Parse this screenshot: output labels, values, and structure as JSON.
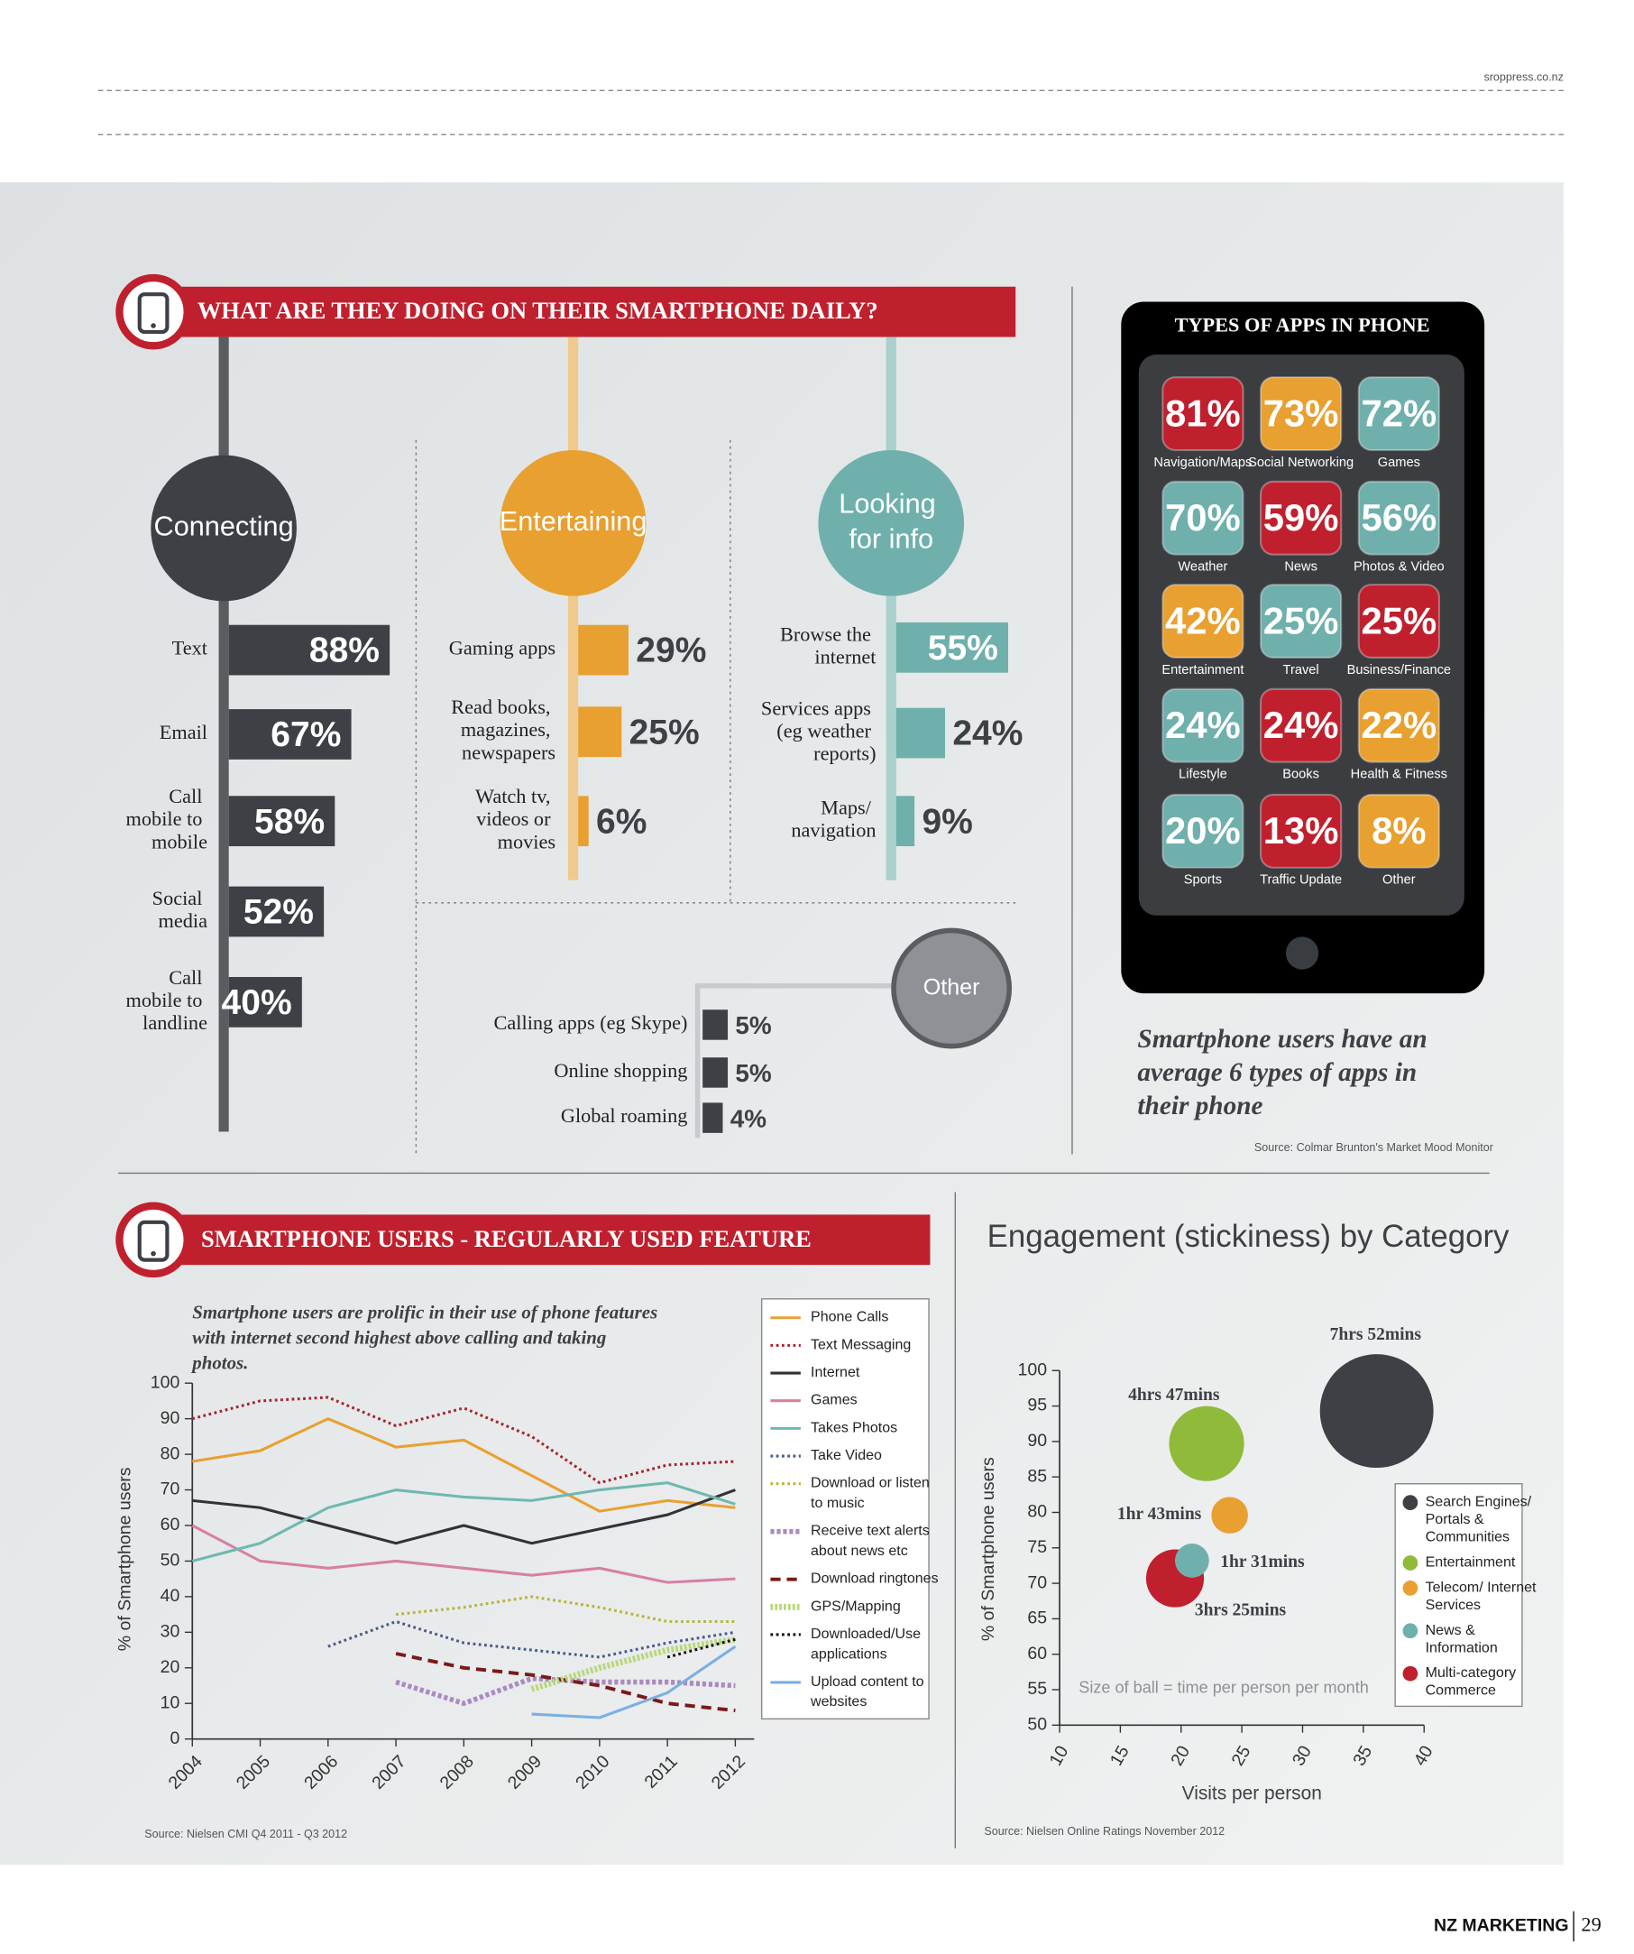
{
  "header": {
    "site": "sroppress.co.nz"
  },
  "daily_title": "WHAT ARE THEY DOING ON THEIR SMARTPHONE DAILY?",
  "apps_note": "Smartphone users have an average 6 types of apps in their phone",
  "apps_source": "Source: Colmar Brunton's Market Mood Monitor",
  "line_source": "Source: Nielsen CMI Q4 2011 - Q3 2012",
  "bubble_source": "Source: Nielsen Online Ratings November 2012",
  "footer": {
    "brand": "NZ MARKETING",
    "page": "29"
  },
  "chart_data": [
    {
      "type": "bar",
      "title": "Connecting",
      "color": "#3d4045",
      "categories": [
        "Text",
        "Email",
        "Call mobile to mobile",
        "Social media",
        "Call mobile to landline"
      ],
      "values": [
        88,
        67,
        58,
        52,
        40
      ],
      "value_labels": [
        "88%",
        "67%",
        "58%",
        "52%",
        "40%"
      ]
    },
    {
      "type": "bar",
      "title": "Entertaining",
      "color": "#e8a030",
      "categories": [
        "Gaming apps",
        "Read books, magazines, newspapers",
        "Watch tv, videos or movies"
      ],
      "values": [
        29,
        25,
        6
      ],
      "value_labels": [
        "29%",
        "25%",
        "6%"
      ]
    },
    {
      "type": "bar",
      "title": "Looking for info",
      "color": "#6fb0ac",
      "categories": [
        "Browse the internet",
        "Services apps (eg weather reports)",
        "Maps/ navigation"
      ],
      "values": [
        55,
        24,
        9
      ],
      "value_labels": [
        "55%",
        "24%",
        "9%"
      ]
    },
    {
      "type": "bar",
      "title": "Other",
      "color": "#3d4045",
      "categories": [
        "Calling apps (eg Skype)",
        "Online shopping",
        "Global roaming"
      ],
      "values": [
        5,
        5,
        4
      ],
      "value_labels": [
        "5%",
        "5%",
        "4%"
      ]
    },
    {
      "type": "tile",
      "title": "TYPES OF APPS IN PHONE",
      "categories": [
        "Navigation/Maps",
        "Social Networking",
        "Games",
        "Weather",
        "News",
        "Photos & Video",
        "Entertainment",
        "Travel",
        "Business/Finance",
        "Lifestyle",
        "Books",
        "Health & Fitness",
        "Sports",
        "Traffic Update",
        "Other"
      ],
      "values": [
        81,
        73,
        72,
        70,
        59,
        56,
        42,
        25,
        25,
        24,
        24,
        22,
        20,
        13,
        8
      ],
      "value_labels": [
        "81%",
        "73%",
        "72%",
        "70%",
        "59%",
        "56%",
        "42%",
        "25%",
        "25%",
        "24%",
        "24%",
        "22%",
        "20%",
        "13%",
        "8%"
      ],
      "colors": [
        "#c0202e",
        "#e8a030",
        "#6fb0ac",
        "#6fb0ac",
        "#c0202e",
        "#6fb0ac",
        "#e8a030",
        "#6fb0ac",
        "#c0202e",
        "#6fb0ac",
        "#c0202e",
        "#e8a030",
        "#6fb0ac",
        "#c0202e",
        "#e8a030"
      ]
    },
    {
      "type": "line",
      "title": "SMARTPHONE USERS - REGULARLY USED FEATURE",
      "subtitle": "Smartphone users are prolific in their use of phone features with internet second highest above calling and taking photos.",
      "y_label": "% of Smartphone users",
      "categories": [
        "2004",
        "2005",
        "2006",
        "2007",
        "2008",
        "2009",
        "2010",
        "2011",
        "2012"
      ],
      "ylim": [
        0,
        100
      ],
      "yticks": [
        0,
        10,
        20,
        30,
        40,
        50,
        60,
        70,
        80,
        90,
        100
      ],
      "legend": "right",
      "series": [
        {
          "name": "Phone Calls",
          "color": "#e8a030",
          "line_style": "solid",
          "values": [
            78,
            81,
            90,
            82,
            84,
            74,
            64,
            67,
            65
          ]
        },
        {
          "name": "Text Messaging",
          "color": "#a3262c",
          "line_style": "dotted",
          "values": [
            90,
            95,
            96,
            88,
            93,
            85,
            72,
            77,
            78
          ]
        },
        {
          "name": "Internet",
          "color": "#333333",
          "line_style": "solid",
          "values": [
            67,
            65,
            60,
            55,
            60,
            55,
            59,
            63,
            70
          ]
        },
        {
          "name": "Games",
          "color": "#d77fa5",
          "line_style": "solid",
          "values": [
            60,
            50,
            48,
            50,
            48,
            46,
            48,
            44,
            45
          ]
        },
        {
          "name": "Takes Photos",
          "color": "#6fb8b0",
          "line_style": "solid",
          "values": [
            50,
            55,
            65,
            70,
            68,
            67,
            70,
            72,
            66
          ]
        },
        {
          "name": "Take Video",
          "color": "#4a5a8a",
          "line_style": "dotted",
          "values": [
            null,
            null,
            26,
            33,
            27,
            25,
            23,
            27,
            30
          ]
        },
        {
          "name": "Download or listen to music",
          "color": "#b5b53a",
          "line_style": "dotted",
          "values": [
            null,
            null,
            null,
            35,
            37,
            40,
            37,
            33,
            33
          ]
        },
        {
          "name": "Receive text alerts about news etc",
          "color": "#a98bc0",
          "line_style": "cross",
          "values": [
            null,
            null,
            null,
            16,
            10,
            17,
            16,
            16,
            15
          ]
        },
        {
          "name": "Download ringtones",
          "color": "#7a1a1a",
          "line_style": "dashed",
          "values": [
            null,
            null,
            null,
            24,
            20,
            18,
            15,
            10,
            8
          ]
        },
        {
          "name": "GPS/Mapping",
          "color": "#b8d77a",
          "line_style": "hatched",
          "values": [
            null,
            null,
            null,
            null,
            null,
            14,
            20,
            25,
            28
          ]
        },
        {
          "name": "Downloaded/Use applications",
          "color": "#111111",
          "line_style": "dotted",
          "values": [
            null,
            null,
            null,
            null,
            null,
            null,
            null,
            23,
            28
          ]
        },
        {
          "name": "Upload content to websites",
          "color": "#7ab0e0",
          "line_style": "solid",
          "values": [
            null,
            null,
            null,
            null,
            null,
            7,
            6,
            13,
            26
          ]
        }
      ]
    },
    {
      "type": "bubble",
      "title": "Engagement (stickiness) by Category",
      "x_label": "Visits per person",
      "y_label": "% of Smartphone users",
      "annotation": "Size of ball = time per person per month",
      "xlim": [
        10,
        40
      ],
      "xticks": [
        10,
        15,
        20,
        25,
        30,
        35,
        40
      ],
      "ylim": [
        50,
        100
      ],
      "yticks": [
        50,
        55,
        60,
        65,
        70,
        75,
        80,
        85,
        90,
        95,
        100
      ],
      "legend": "right",
      "categories": [
        "Search Engines/ Portals & Communities",
        "Entertainment",
        "Telecom/ Internet Services",
        "News & Information",
        "Multi-category Commerce"
      ],
      "colors": [
        "#3d4045",
        "#8fba3a",
        "#e8a030",
        "#6fb0ac",
        "#c0202e"
      ],
      "x": [
        36.1,
        22.1,
        24,
        20.9,
        19.5
      ],
      "values": [
        94.3,
        89.7,
        79.6,
        73.2,
        70.7
      ],
      "sizes": [
        472,
        287,
        103,
        91,
        205
      ],
      "value_labels": [
        "7hrs 52mins",
        "4hrs 47mins",
        "1hr 43mins",
        "1hr 31mins",
        "3hrs 25mins"
      ]
    }
  ]
}
